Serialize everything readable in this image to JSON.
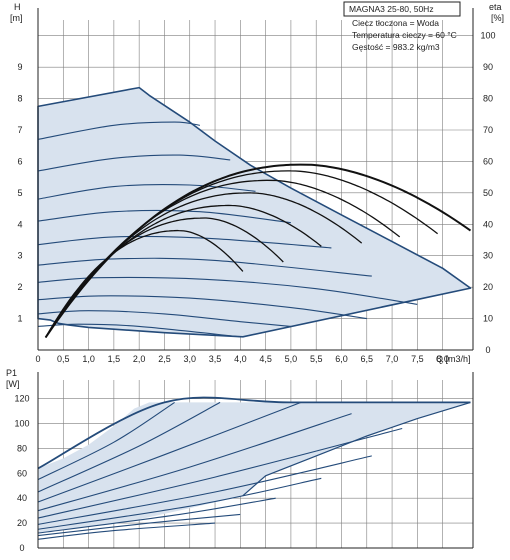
{
  "chart_data": [
    {
      "type": "line",
      "title": "MAGNA3 25-80, 50Hz",
      "notes": [
        "Ciecz tłoczona = Woda",
        "Temperatura cieczy = 60 °C",
        "Gęstość = 983.2 kg/m3"
      ],
      "ylabel_left": [
        "H",
        "[m]"
      ],
      "ylabel_right": [
        "eta",
        "[%]"
      ],
      "xlabel": "Q [m3/h]",
      "xlim": [
        0,
        8.6
      ],
      "ylim": [
        0,
        10.5
      ],
      "ylim_right": [
        0,
        105
      ],
      "x_ticks": [
        "0",
        "0,5",
        "1,0",
        "1,5",
        "2,0",
        "2,5",
        "3,0",
        "3,5",
        "4,0",
        "4,5",
        "5,0",
        "5,5",
        "6,0",
        "6,5",
        "7,0",
        "7,5",
        "8,0"
      ],
      "x_tick_values": [
        0,
        0.5,
        1,
        1.5,
        2,
        2.5,
        3,
        3.5,
        4,
        4.5,
        5,
        5.5,
        6,
        6.5,
        7,
        7.5,
        8
      ],
      "y_ticks": [
        1,
        2,
        3,
        4,
        5,
        6,
        7,
        8,
        9
      ],
      "y_ticks_right": [
        0,
        10,
        20,
        30,
        40,
        50,
        60,
        70,
        80,
        90,
        100
      ],
      "grid": true,
      "envelope": {
        "x": [
          0,
          2,
          2.2,
          3,
          3.5,
          4.2,
          5,
          6,
          7,
          8,
          8.55,
          4.05,
          2.5,
          1.0,
          0.6,
          0.4,
          0.35,
          0.25,
          0
        ],
        "y": [
          7.75,
          8.35,
          8.1,
          7.25,
          6.65,
          5.88,
          5.15,
          4.3,
          3.45,
          2.6,
          1.97,
          0.42,
          0.55,
          0.72,
          0.8,
          0.85,
          0.88,
          0.95,
          1.0
        ]
      },
      "head_curves": [
        {
          "x": [
            0,
            1.5,
            2.7,
            3.2
          ],
          "y": [
            6.7,
            7.15,
            7.25,
            7.15
          ]
        },
        {
          "x": [
            0,
            1.5,
            2.8,
            3.8
          ],
          "y": [
            5.7,
            6.1,
            6.2,
            6.05
          ]
        },
        {
          "x": [
            0,
            1.5,
            3.0,
            4.3
          ],
          "y": [
            4.8,
            5.2,
            5.25,
            5.05
          ]
        },
        {
          "x": [
            0,
            1.5,
            3.2,
            5.0
          ],
          "y": [
            4.1,
            4.4,
            4.4,
            4.05
          ]
        },
        {
          "x": [
            0,
            1.5,
            3.4,
            5.8
          ],
          "y": [
            3.35,
            3.6,
            3.55,
            3.25
          ]
        },
        {
          "x": [
            0,
            1.5,
            3.5,
            6.6
          ],
          "y": [
            2.7,
            2.9,
            2.85,
            2.35
          ]
        },
        {
          "x": [
            0,
            1.2,
            3.3,
            5.5,
            7.5
          ],
          "y": [
            2.15,
            2.3,
            2.25,
            1.95,
            1.45
          ]
        },
        {
          "x": [
            0,
            1.2,
            3.0,
            5.0,
            6.5
          ],
          "y": [
            1.6,
            1.72,
            1.65,
            1.35,
            1.0
          ]
        },
        {
          "x": [
            0,
            1.0,
            2.5,
            4.0,
            5.0
          ],
          "y": [
            1.15,
            1.25,
            1.15,
            0.9,
            0.75
          ]
        },
        {
          "x": [
            0,
            0.8,
            2.0,
            4.0
          ],
          "y": [
            0.75,
            0.82,
            0.75,
            0.42
          ]
        }
      ],
      "efficiency_curves": [
        {
          "peak_x": 5.25,
          "peak_eta": 59,
          "end_x": 8.55,
          "end_eta": 38
        },
        {
          "peak_x": 5.0,
          "peak_eta": 57,
          "end_x": 7.9,
          "end_eta": 37
        },
        {
          "peak_x": 4.6,
          "peak_eta": 54,
          "end_x": 7.15,
          "end_eta": 36
        },
        {
          "peak_x": 4.2,
          "peak_eta": 50,
          "end_x": 6.4,
          "end_eta": 34
        },
        {
          "peak_x": 3.8,
          "peak_eta": 46,
          "end_x": 5.6,
          "end_eta": 33
        },
        {
          "peak_x": 3.3,
          "peak_eta": 42,
          "end_x": 4.85,
          "end_eta": 28
        },
        {
          "peak_x": 2.8,
          "peak_eta": 38,
          "end_x": 4.05,
          "end_eta": 25
        }
      ]
    },
    {
      "type": "line",
      "ylabel_left": [
        "P1",
        "[W]"
      ],
      "xlim": [
        0,
        8.6
      ],
      "ylim": [
        0,
        135
      ],
      "y_ticks": [
        0,
        20,
        40,
        60,
        80,
        100,
        120
      ],
      "grid": true,
      "envelope": {
        "x": [
          0,
          0.5,
          1.0,
          1.5,
          1.9,
          2.2,
          8.55,
          7.5,
          6.5,
          5.5,
          4.5,
          4.05,
          3.0,
          2.0,
          1.0,
          0
        ],
        "y": [
          64,
          72,
          83,
          98,
          112,
          117,
          117,
          104,
          90,
          74,
          58,
          42,
          32,
          23,
          17,
          12
        ]
      },
      "power_curves": [
        {
          "x": [
            0,
            2.5,
            5.0,
            8.55
          ],
          "y": [
            64,
            117,
            117,
            117
          ]
        },
        {
          "x": [
            0,
            1.5,
            2.7
          ],
          "y": [
            55,
            85,
            117
          ]
        },
        {
          "x": [
            0,
            2.0,
            3.6
          ],
          "y": [
            45,
            82,
            117
          ]
        },
        {
          "x": [
            0,
            2.5,
            5.2
          ],
          "y": [
            37,
            75,
            117
          ]
        },
        {
          "x": [
            0,
            3.0,
            6.2
          ],
          "y": [
            30,
            65,
            108
          ]
        },
        {
          "x": [
            0,
            3.5,
            7.2
          ],
          "y": [
            24,
            57,
            96
          ]
        },
        {
          "x": [
            0,
            3.5,
            6.6
          ],
          "y": [
            19,
            45,
            74
          ]
        },
        {
          "x": [
            0,
            3.2,
            5.6
          ],
          "y": [
            15,
            35,
            56
          ]
        },
        {
          "x": [
            0,
            2.8,
            4.7
          ],
          "y": [
            12,
            27,
            40
          ]
        },
        {
          "x": [
            0,
            2.2,
            4.0
          ],
          "y": [
            10,
            20,
            27
          ]
        },
        {
          "x": [
            0,
            1.5,
            3.5
          ],
          "y": [
            7,
            14,
            20
          ]
        }
      ]
    }
  ],
  "colors": {
    "fill": "#d8e2ee",
    "curve": "#244b7a",
    "efficiency": "#111111",
    "grid": "#7f7f7f",
    "axis": "#222222"
  }
}
